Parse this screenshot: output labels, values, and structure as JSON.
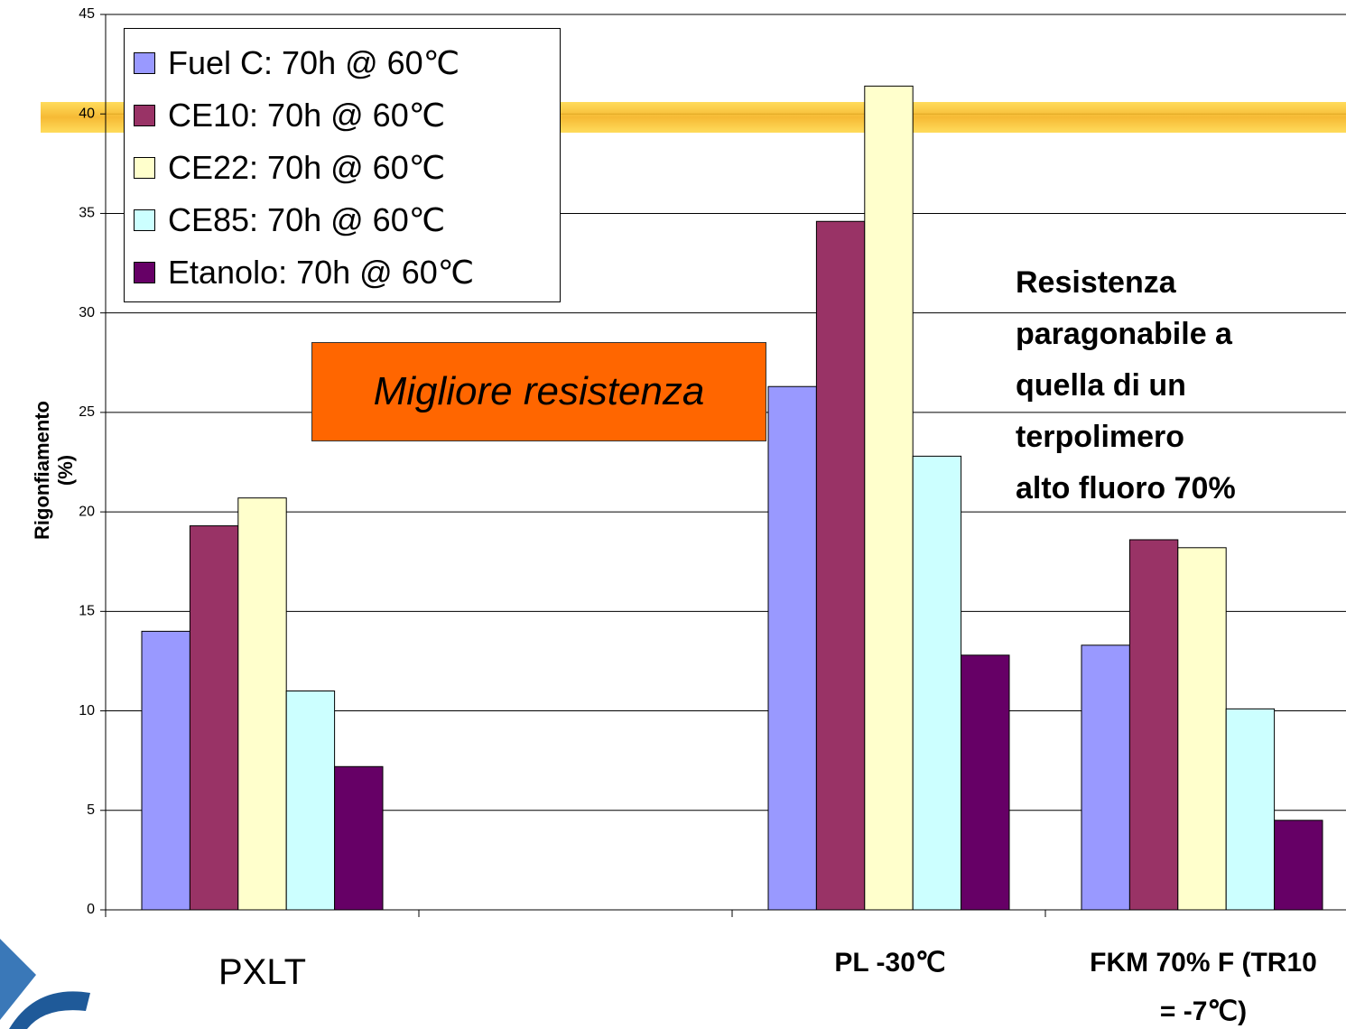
{
  "chart_data": {
    "type": "bar",
    "y_label": "Rigonfiamento (%)",
    "categories": [
      "PXLT",
      null,
      "PL -30℃",
      "FKM 70% F (TR10 = -7℃)"
    ],
    "series": [
      {
        "name": "Fuel C: 70h @ 60℃",
        "color": "#9999ff",
        "values": [
          14.0,
          null,
          26.3,
          13.3
        ]
      },
      {
        "name": "CE10: 70h @ 60℃",
        "color": "#993366",
        "values": [
          19.3,
          null,
          34.6,
          18.6
        ]
      },
      {
        "name": "CE22: 70h @ 60℃",
        "color": "#ffffcc",
        "values": [
          20.7,
          null,
          41.4,
          18.2
        ]
      },
      {
        "name": "CE85: 70h @ 60℃",
        "color": "#ccffff",
        "values": [
          11.0,
          null,
          22.8,
          10.1
        ]
      },
      {
        "name": "Etanolo: 70h @ 60℃",
        "color": "#660066",
        "values": [
          7.2,
          null,
          12.8,
          4.5
        ]
      }
    ],
    "ylim": [
      0,
      45
    ],
    "yticks": [
      0,
      5,
      10,
      15,
      20,
      25,
      30,
      35,
      40,
      45
    ],
    "grid": true,
    "annotations": {
      "box": "Migliore resistenza",
      "note_lines": [
        "Resistenza",
        "paragonabile a",
        "quella di un",
        "terpolimero",
        "alto fluoro 70%"
      ]
    }
  }
}
